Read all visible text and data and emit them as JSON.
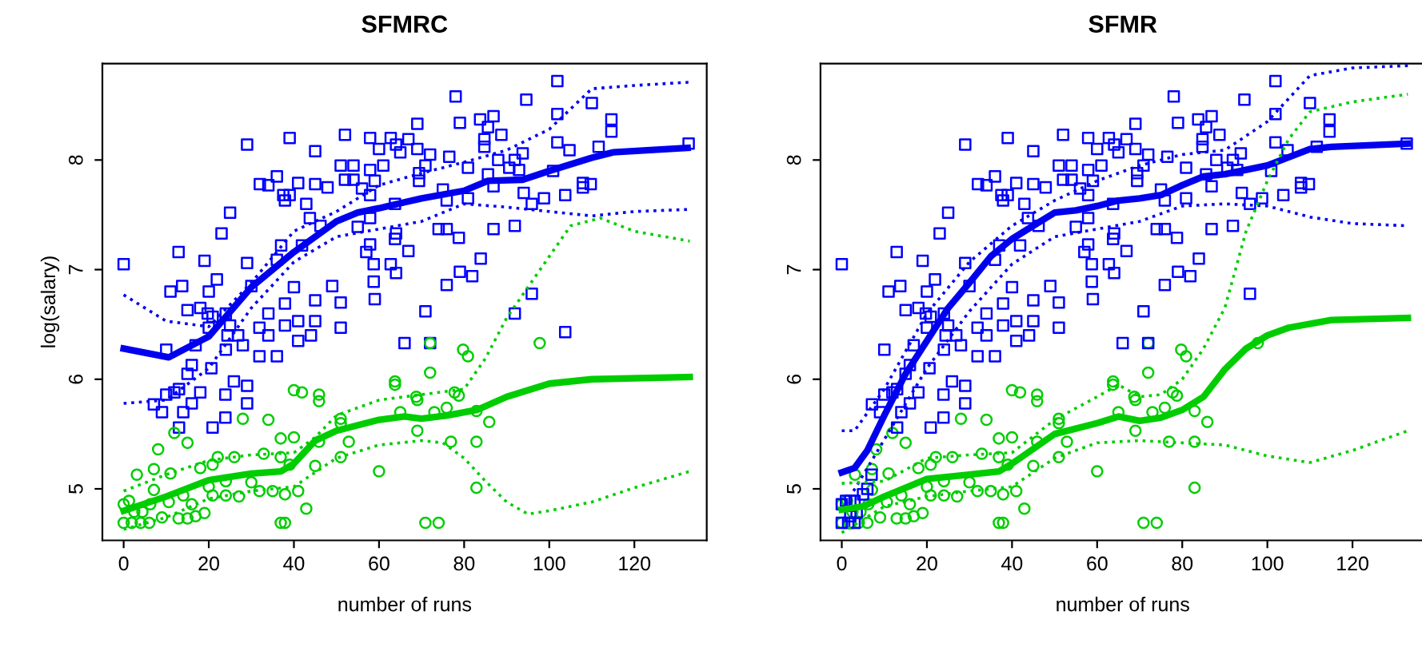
{
  "chart_data": [
    {
      "type": "scatter",
      "title": "SFMRC",
      "xlabel": "number of runs",
      "ylabel": "log(salary)",
      "xlim": [
        -5,
        137
      ],
      "ylim": [
        4.53,
        8.88
      ],
      "xticks": [
        0,
        20,
        40,
        60,
        80,
        100,
        120
      ],
      "yticks": [
        5,
        6,
        7,
        8
      ],
      "grid": false,
      "legend": false,
      "series": [
        {
          "marker": "square",
          "color": "#0000ff",
          "x": [
            0,
            10,
            11,
            12.9,
            13.75,
            15,
            16.9,
            16,
            15,
            13,
            11.9,
            10,
            7.1,
            9,
            14,
            13,
            16,
            18,
            19,
            18,
            20,
            19.75,
            20,
            20.9,
            21.9,
            23,
            25,
            24,
            25,
            24.4,
            24,
            26.9,
            28,
            25.9,
            23.9,
            23.9,
            20.9,
            20.6,
            29,
            30,
            29,
            32,
            34,
            36,
            31.9,
            31.9,
            34,
            34,
            36,
            29,
            29,
            37,
            36,
            37.5,
            39,
            37.9,
            39,
            41,
            37.9,
            37.9,
            41,
            41,
            40,
            41.9,
            42.9,
            43.75,
            44,
            45,
            45,
            45,
            45,
            46.25,
            47.9,
            49,
            51,
            51,
            51,
            52,
            54,
            52,
            54,
            56,
            57.9,
            60,
            57.9,
            59,
            57.9,
            55,
            57.9,
            57.9,
            57,
            58.75,
            58.75,
            59,
            61,
            62.75,
            64,
            65,
            69,
            66.9,
            69,
            69.4,
            69.4,
            70.9,
            72,
            63.75,
            64,
            63.75,
            66.9,
            62.75,
            64,
            66,
            72,
            70.9,
            74,
            75.9,
            75,
            75.9,
            75.9,
            76.5,
            78,
            79,
            78.75,
            79,
            80.9,
            80.9,
            81.9,
            83.9,
            83.75,
            85.6,
            86.9,
            84.75,
            84.75,
            88.75,
            88,
            86.9,
            86.9,
            85.6,
            90.6,
            91.9,
            92.9,
            93.75,
            94.6,
            91.9,
            91.9,
            94,
            95.9,
            95.9,
            98.75,
            100.9,
            101.9,
            101.9,
            101.9,
            103.75,
            103.75,
            104.75,
            107.9,
            107.9,
            109.75,
            110,
            111.6,
            114.6,
            114.6,
            132.75
          ],
          "values": [
            7.05,
            6.27,
            6.8,
            7.16,
            6.85,
            6.63,
            6.31,
            6.13,
            6.05,
            5.91,
            5.88,
            5.86,
            5.77,
            5.7,
            5.7,
            5.56,
            5.78,
            5.88,
            7.08,
            6.65,
            6.8,
            6.6,
            6.47,
            6.57,
            6.91,
            7.33,
            7.52,
            6.6,
            6.49,
            6.4,
            6.27,
            6.4,
            6.31,
            5.98,
            5.86,
            5.65,
            5.56,
            6.1,
            7.06,
            6.85,
            8.14,
            7.78,
            7.77,
            7.85,
            6.47,
            6.21,
            6.4,
            6.6,
            6.21,
            5.94,
            5.78,
            7.22,
            7.09,
            7.68,
            7.68,
            7.63,
            8.2,
            7.79,
            6.69,
            6.49,
            6.53,
            6.35,
            6.84,
            7.22,
            7.6,
            7.47,
            6.4,
            6.72,
            6.53,
            8.08,
            7.78,
            7.4,
            7.75,
            6.85,
            6.7,
            6.47,
            7.95,
            8.23,
            7.95,
            7.82,
            7.82,
            7.74,
            8.2,
            8.1,
            7.91,
            7.81,
            7.68,
            7.39,
            7.47,
            7.23,
            7.16,
            7.05,
            6.89,
            6.73,
            7.95,
            8.2,
            8.14,
            8.07,
            8.33,
            8.19,
            8.1,
            7.81,
            7.88,
            7.95,
            8.05,
            7.28,
            7.33,
            7.6,
            7.17,
            7.05,
            6.97,
            6.33,
            6.33,
            6.62,
            7.37,
            7.37,
            7.73,
            7.63,
            6.86,
            8.03,
            8.58,
            8.34,
            7.29,
            6.98,
            7.65,
            7.93,
            6.94,
            7.1,
            8.37,
            8.3,
            8.4,
            8.19,
            8.12,
            8.23,
            8.0,
            7.76,
            7.37,
            7.87,
            7.93,
            8.0,
            7.91,
            8.06,
            8.55,
            7.4,
            6.6,
            7.7,
            7.6,
            6.78,
            7.65,
            7.9,
            8.16,
            8.42,
            8.72,
            7.68,
            6.43,
            8.09,
            7.79,
            7.75,
            7.78,
            8.52,
            8.12,
            8.37,
            8.26,
            8.15
          ]
        },
        {
          "marker": "circle",
          "color": "#00cd00",
          "x": [
            0,
            0,
            1.25,
            2.5,
            1.9,
            4,
            6,
            3.1,
            4.4,
            6.25,
            7.1,
            7.1,
            8.1,
            9,
            11,
            10.6,
            11.9,
            12.9,
            14,
            15,
            15,
            16,
            16.9,
            18,
            19,
            20,
            20.9,
            20.9,
            22.1,
            24,
            24,
            26,
            27.1,
            28,
            30,
            31.9,
            32.9,
            34,
            35,
            36.9,
            36.9,
            36.9,
            37.9,
            37.9,
            39,
            40,
            40,
            41.9,
            41,
            42.9,
            45,
            45.9,
            45.9,
            45.9,
            51,
            51,
            51,
            52.9,
            60,
            63.75,
            63.75,
            65,
            68.75,
            69,
            69,
            72,
            72,
            73,
            70.9,
            74,
            75.9,
            76.9,
            77.75,
            78.75,
            79.75,
            80.9,
            82.9,
            82.9,
            82.9,
            85.9,
            97.75
          ],
          "values": [
            4.86,
            4.69,
            4.89,
            4.79,
            4.69,
            4.69,
            4.69,
            5.13,
            4.79,
            4.86,
            4.99,
            5.18,
            5.36,
            4.74,
            5.14,
            4.88,
            5.51,
            4.73,
            4.94,
            4.73,
            5.42,
            4.86,
            4.75,
            5.19,
            4.78,
            5.02,
            5.22,
            4.94,
            5.29,
            5.07,
            4.94,
            5.29,
            4.93,
            5.64,
            5.06,
            4.98,
            5.32,
            5.63,
            4.98,
            5.46,
            5.29,
            4.69,
            4.69,
            4.95,
            5.22,
            5.47,
            5.9,
            5.88,
            4.98,
            4.82,
            5.21,
            5.86,
            5.8,
            5.43,
            5.64,
            5.6,
            5.29,
            5.43,
            5.16,
            5.98,
            5.95,
            5.7,
            5.84,
            5.81,
            5.53,
            6.33,
            6.06,
            5.7,
            4.69,
            4.69,
            5.74,
            5.43,
            5.88,
            5.85,
            6.27,
            6.21,
            5.71,
            5.43,
            5.01,
            5.61,
            6.33
          ]
        },
        {
          "type": "line",
          "line_style": "solid",
          "color": "#0000ee",
          "x": [
            0,
            10.6,
            20,
            30,
            40,
            50,
            55,
            60,
            70,
            80,
            85.6,
            93.75,
            100,
            110,
            115,
            132.5
          ],
          "values": [
            6.28,
            6.2,
            6.39,
            6.84,
            7.16,
            7.44,
            7.52,
            7.56,
            7.65,
            7.72,
            7.81,
            7.82,
            7.9,
            8.02,
            8.07,
            8.11
          ]
        },
        {
          "type": "line",
          "line_style": "dotted",
          "color": "#0000ee",
          "x": [
            0,
            10,
            20,
            30,
            40,
            50,
            60,
            70,
            80,
            90,
            100,
            110,
            120,
            133
          ],
          "values": [
            6.77,
            6.53,
            6.48,
            6.88,
            7.35,
            7.53,
            7.77,
            7.88,
            7.98,
            8.09,
            8.28,
            8.65,
            8.68,
            8.71
          ]
        },
        {
          "type": "line",
          "line_style": "dotted",
          "color": "#0000ee",
          "x": [
            0,
            10,
            20,
            30,
            40,
            50,
            60,
            70,
            80,
            90,
            100,
            110,
            120,
            133
          ],
          "values": [
            5.78,
            5.81,
            6.1,
            6.65,
            7.07,
            7.3,
            7.37,
            7.44,
            7.6,
            7.57,
            7.53,
            7.49,
            7.53,
            7.55
          ]
        },
        {
          "type": "line",
          "line_style": "solid",
          "color": "#00cd00",
          "x": [
            0,
            10,
            20,
            30,
            37,
            40,
            45,
            50,
            60,
            66,
            70,
            76,
            83,
            90,
            100,
            110,
            133
          ],
          "values": [
            4.8,
            4.93,
            5.08,
            5.14,
            5.16,
            5.23,
            5.44,
            5.53,
            5.63,
            5.66,
            5.64,
            5.67,
            5.72,
            5.84,
            5.96,
            6.0,
            6.02
          ]
        },
        {
          "type": "line",
          "line_style": "dotted",
          "color": "#00cd00",
          "x": [
            0,
            10,
            20,
            30,
            40,
            45,
            50,
            60,
            70,
            80,
            85,
            90,
            95,
            100,
            105,
            112,
            120,
            133
          ],
          "values": [
            4.98,
            5.13,
            5.26,
            5.31,
            5.33,
            5.47,
            5.67,
            5.81,
            5.86,
            5.91,
            6.19,
            6.56,
            6.84,
            7.12,
            7.4,
            7.47,
            7.35,
            7.26
          ]
        },
        {
          "type": "line",
          "line_style": "dotted",
          "color": "#00cd00",
          "x": [
            0,
            10,
            20,
            30,
            40,
            50,
            60,
            70,
            75,
            80,
            85,
            90,
            95,
            100,
            110,
            120,
            133
          ],
          "values": [
            4.63,
            4.74,
            4.91,
            4.98,
            5.02,
            5.28,
            5.4,
            5.44,
            5.42,
            5.28,
            5.07,
            4.88,
            4.77,
            4.8,
            4.88,
            5.01,
            5.16
          ]
        }
      ]
    },
    {
      "type": "scatter",
      "title": "SFMR",
      "xlabel": "number of runs",
      "xlim": [
        -5,
        137
      ],
      "ylim": [
        4.53,
        8.88
      ],
      "xticks": [
        0,
        20,
        40,
        60,
        80,
        100,
        120
      ],
      "yticks": [
        5,
        6,
        7,
        8
      ],
      "grid": false,
      "legend": false,
      "series": [
        {
          "marker": "circle",
          "color": "#00cd00",
          "x": [
            0,
            0,
            1.25,
            2.5,
            1.9,
            4,
            6,
            3.1,
            4.4,
            6.25,
            7.1,
            7.1,
            8.1,
            9,
            11,
            10.6,
            11.9,
            12.9,
            14,
            15,
            15,
            16,
            16.9,
            18,
            19,
            20,
            20.9,
            20.9,
            22.1,
            24,
            24,
            26,
            27.1,
            28,
            30,
            31.9,
            32.9,
            34,
            35,
            36.9,
            36.9,
            36.9,
            37.9,
            37.9,
            39,
            40,
            40,
            41.9,
            41,
            42.9,
            45,
            45.9,
            45.9,
            45.9,
            51,
            51,
            51,
            52.9,
            60,
            63.75,
            63.75,
            65,
            68.75,
            69,
            69,
            72,
            72,
            73,
            70.9,
            74,
            75.9,
            76.9,
            77.75,
            78.75,
            79.75,
            80.9,
            82.9,
            82.9,
            82.9,
            85.9,
            97.75
          ],
          "values": [
            4.86,
            4.69,
            4.89,
            4.79,
            4.69,
            4.69,
            4.69,
            5.13,
            4.79,
            4.86,
            4.99,
            5.18,
            5.36,
            4.74,
            5.14,
            4.88,
            5.51,
            4.73,
            4.94,
            4.73,
            5.42,
            4.86,
            4.75,
            5.19,
            4.78,
            5.02,
            5.22,
            4.94,
            5.29,
            5.07,
            4.94,
            5.29,
            4.93,
            5.64,
            5.06,
            4.98,
            5.32,
            5.63,
            4.98,
            5.46,
            5.29,
            4.69,
            4.69,
            4.95,
            5.22,
            5.47,
            5.9,
            5.88,
            4.98,
            4.82,
            5.21,
            5.86,
            5.8,
            5.43,
            5.64,
            5.6,
            5.29,
            5.43,
            5.16,
            5.98,
            5.95,
            5.7,
            5.84,
            5.81,
            5.53,
            6.33,
            6.06,
            5.7,
            4.69,
            4.69,
            5.74,
            5.43,
            5.88,
            5.85,
            6.27,
            6.21,
            5.71,
            5.43,
            5.01,
            5.61,
            6.33
          ]
        },
        {
          "marker": "square",
          "color": "#0000ff",
          "x": [
            0,
            1,
            2,
            3,
            0,
            1.5,
            3,
            3.5,
            2,
            5,
            6,
            7,
            0,
            10,
            11,
            12.9,
            13.75,
            15,
            16.9,
            16,
            15,
            13,
            11.9,
            10,
            7.1,
            9,
            14,
            13,
            16,
            18,
            19,
            18,
            20,
            19.75,
            20,
            20.9,
            21.9,
            23,
            25,
            24,
            25,
            24.4,
            24,
            26.9,
            28,
            25.9,
            23.9,
            23.9,
            20.9,
            20.6,
            29,
            30,
            29,
            32,
            34,
            36,
            31.9,
            31.9,
            34,
            34,
            36,
            29,
            29,
            37,
            36,
            37.5,
            39,
            37.9,
            39,
            41,
            37.9,
            37.9,
            41,
            41,
            40,
            41.9,
            42.9,
            43.75,
            44,
            45,
            45,
            45,
            45,
            46.25,
            47.9,
            49,
            51,
            51,
            51,
            52,
            54,
            52,
            54,
            56,
            57.9,
            60,
            57.9,
            59,
            57.9,
            55,
            57.9,
            57.9,
            57,
            58.75,
            58.75,
            59,
            61,
            62.75,
            64,
            65,
            69,
            66.9,
            69,
            69.4,
            69.4,
            70.9,
            72,
            63.75,
            64,
            63.75,
            66.9,
            62.75,
            64,
            66,
            72,
            70.9,
            74,
            75.9,
            75,
            75.9,
            75.9,
            76.5,
            78,
            79,
            78.75,
            79,
            80.9,
            80.9,
            81.9,
            83.9,
            83.75,
            85.6,
            86.9,
            84.75,
            84.75,
            88.75,
            88,
            86.9,
            86.9,
            85.6,
            90.6,
            91.9,
            92.9,
            93.75,
            94.6,
            91.9,
            94,
            95.9,
            95.9,
            98.75,
            100.9,
            101.9,
            101.9,
            101.9,
            103.75,
            104.75,
            107.9,
            107.9,
            109.75,
            110,
            111.6,
            114.6,
            114.6,
            132.75
          ],
          "values": [
            4.86,
            4.89,
            4.89,
            4.89,
            4.69,
            4.69,
            4.69,
            4.78,
            4.75,
            4.95,
            5.0,
            5.13,
            7.05,
            6.27,
            6.8,
            7.16,
            6.85,
            6.63,
            6.31,
            6.13,
            6.05,
            5.91,
            5.88,
            5.86,
            5.77,
            5.7,
            5.7,
            5.56,
            5.78,
            5.88,
            7.08,
            6.65,
            6.8,
            6.6,
            6.47,
            6.57,
            6.91,
            7.33,
            7.52,
            6.6,
            6.49,
            6.4,
            6.27,
            6.4,
            6.31,
            5.98,
            5.86,
            5.65,
            5.56,
            6.1,
            7.06,
            6.85,
            8.14,
            7.78,
            7.77,
            7.85,
            6.47,
            6.21,
            6.4,
            6.6,
            6.21,
            5.94,
            5.78,
            7.22,
            7.09,
            7.68,
            7.68,
            7.63,
            8.2,
            7.79,
            6.69,
            6.49,
            6.53,
            6.35,
            6.84,
            7.22,
            7.6,
            7.47,
            6.4,
            6.72,
            6.53,
            8.08,
            7.78,
            7.4,
            7.75,
            6.85,
            6.7,
            6.47,
            7.95,
            8.23,
            7.95,
            7.82,
            7.82,
            7.74,
            8.2,
            8.1,
            7.91,
            7.81,
            7.68,
            7.39,
            7.47,
            7.23,
            7.16,
            7.05,
            6.89,
            6.73,
            7.95,
            8.2,
            8.14,
            8.07,
            8.33,
            8.19,
            8.1,
            7.81,
            7.88,
            7.95,
            8.05,
            7.28,
            7.33,
            7.6,
            7.17,
            7.05,
            6.97,
            6.33,
            6.33,
            6.62,
            7.37,
            7.37,
            7.73,
            7.63,
            6.86,
            8.03,
            8.58,
            8.34,
            7.29,
            6.98,
            7.65,
            7.93,
            6.94,
            7.1,
            8.37,
            8.3,
            8.4,
            8.19,
            8.12,
            8.23,
            8.0,
            7.76,
            7.37,
            7.87,
            7.93,
            8.0,
            7.91,
            8.06,
            8.55,
            7.4,
            7.7,
            7.6,
            6.78,
            7.65,
            7.9,
            8.16,
            8.42,
            8.72,
            7.68,
            8.09,
            7.79,
            7.75,
            7.78,
            8.52,
            8.12,
            8.37,
            8.26,
            8.15
          ]
        },
        {
          "type": "line",
          "line_style": "solid",
          "color": "#0000ee",
          "x": [
            0,
            3,
            6,
            10,
            15,
            20,
            25,
            30,
            35,
            40,
            45,
            50,
            55,
            60,
            65,
            70,
            75,
            80,
            85,
            90,
            95,
            100,
            110,
            115,
            133
          ],
          "values": [
            5.15,
            5.19,
            5.35,
            5.67,
            6.05,
            6.35,
            6.65,
            6.88,
            7.12,
            7.28,
            7.4,
            7.52,
            7.54,
            7.58,
            7.63,
            7.65,
            7.68,
            7.77,
            7.85,
            7.87,
            7.91,
            7.95,
            8.1,
            8.12,
            8.15
          ]
        },
        {
          "type": "line",
          "line_style": "dotted",
          "color": "#0000ee",
          "x": [
            0,
            3,
            10,
            20,
            30,
            40,
            50,
            60,
            70,
            80,
            90,
            100,
            110,
            120,
            133
          ],
          "values": [
            5.53,
            5.53,
            5.91,
            6.6,
            7.07,
            7.4,
            7.63,
            7.81,
            7.95,
            8.05,
            8.09,
            8.35,
            8.77,
            8.84,
            8.86
          ]
        },
        {
          "type": "line",
          "line_style": "dotted",
          "color": "#0000ee",
          "x": [
            0,
            10,
            20,
            30,
            40,
            50,
            60,
            70,
            80,
            90,
            100,
            110,
            120,
            133
          ],
          "values": [
            4.8,
            5.45,
            6.1,
            6.62,
            7.05,
            7.3,
            7.37,
            7.44,
            7.58,
            7.6,
            7.58,
            7.48,
            7.42,
            7.4
          ]
        },
        {
          "type": "line",
          "line_style": "solid",
          "color": "#00cd00",
          "x": [
            0,
            5,
            10,
            20,
            30,
            37,
            40,
            50,
            60,
            65,
            70,
            75,
            80,
            85,
            90,
            95,
            100,
            105,
            115,
            133
          ],
          "values": [
            4.81,
            4.84,
            4.93,
            5.09,
            5.13,
            5.16,
            5.23,
            5.5,
            5.6,
            5.66,
            5.62,
            5.65,
            5.72,
            5.84,
            6.09,
            6.28,
            6.4,
            6.47,
            6.54,
            6.56
          ]
        },
        {
          "type": "line",
          "line_style": "dotted",
          "color": "#00cd00",
          "x": [
            0,
            10,
            20,
            30,
            40,
            50,
            60,
            65,
            70,
            75,
            80,
            85,
            90,
            95,
            100,
            105,
            110,
            120,
            133
          ],
          "values": [
            5.05,
            5.07,
            5.28,
            5.31,
            5.33,
            5.63,
            5.84,
            5.95,
            5.84,
            5.86,
            6.0,
            6.28,
            6.65,
            7.35,
            7.81,
            8.19,
            8.44,
            8.53,
            8.6
          ]
        },
        {
          "type": "line",
          "line_style": "dotted",
          "color": "#00cd00",
          "x": [
            0,
            10,
            20,
            30,
            40,
            50,
            60,
            70,
            80,
            90,
            100,
            110,
            120,
            133
          ],
          "values": [
            4.6,
            4.84,
            4.93,
            4.98,
            5.02,
            5.28,
            5.42,
            5.44,
            5.42,
            5.4,
            5.3,
            5.24,
            5.35,
            5.53
          ]
        }
      ]
    }
  ]
}
